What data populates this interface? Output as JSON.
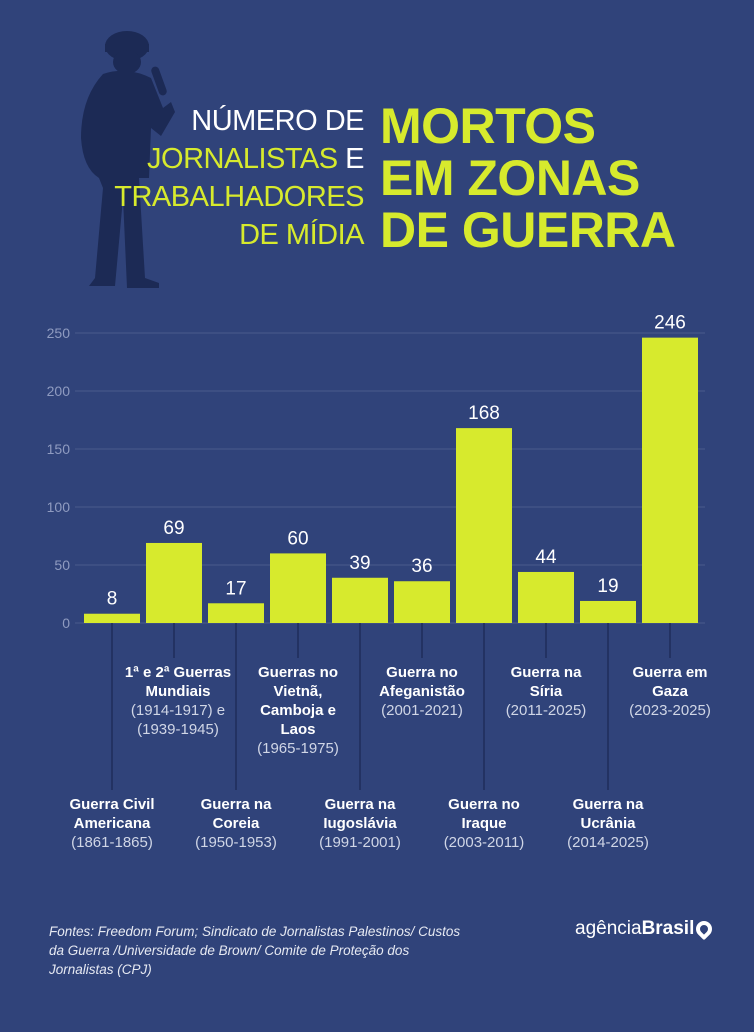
{
  "title": {
    "left_line1": "NÚMERO DE",
    "left_line2_highlight": "JORNALISTAS",
    "left_line2_rest": " E",
    "left_line3": "TRABALHADORES",
    "left_line4": "DE MÍDIA",
    "right_line1": "MORTOS",
    "right_line2": "EM ZONAS",
    "right_line3": "DE GUERRA"
  },
  "colors": {
    "background": "#30437a",
    "bar": "#d7ea2d",
    "grid": "#4a5b8c"
  },
  "chart_data": {
    "type": "bar",
    "ylim": [
      0,
      250
    ],
    "yticks": [
      "0",
      "50",
      "100",
      "150",
      "200",
      "250"
    ],
    "grid": true,
    "categories": [
      {
        "name": "Guerra Civil Americana",
        "title": "Guerra Civil Americana",
        "period": "(1861-1865)"
      },
      {
        "name": "1ª e 2ª Guerras Mundiais",
        "title": "1ª e 2ª Guerras Mundiais",
        "period": "(1914-1917) e (1939-1945)"
      },
      {
        "name": "Guerra na Coreia",
        "title": "Guerra na Coreia",
        "period": "(1950-1953)"
      },
      {
        "name": "Guerras no Vietnã, Camboja e Laos",
        "title": "Guerras no Vietnã, Camboja e Laos",
        "period": "(1965-1975)"
      },
      {
        "name": "Guerra na Iugoslávia",
        "title": "Guerra na Iugoslávia",
        "period": "(1991-2001)"
      },
      {
        "name": "Guerra no Afeganistão",
        "title": "Guerra no Afeganistão",
        "period": "(2001-2021)"
      },
      {
        "name": "Guerra no Iraque",
        "title": "Guerra no Iraque",
        "period": "(2003-2011)"
      },
      {
        "name": "Guerra na Síria",
        "title": "Guerra na Síria",
        "period": "(2011-2025)"
      },
      {
        "name": "Guerra na Ucrânia",
        "title": "Guerra na Ucrânia",
        "period": "(2014-2025)"
      },
      {
        "name": "Guerra em Gaza",
        "title": "Guerra em Gaza",
        "period": "(2023-2025)"
      }
    ],
    "values": [
      8,
      69,
      17,
      60,
      39,
      36,
      168,
      44,
      19,
      246
    ]
  },
  "footer": {
    "sources": "Fontes:  Freedom Forum; Sindicato de Jornalistas Palestinos/ Custos da Guerra /Universidade de Brown/ Comite de Proteção dos Jornalistas (CPJ)",
    "logo_light": "agência",
    "logo_bold": "Brasil"
  }
}
